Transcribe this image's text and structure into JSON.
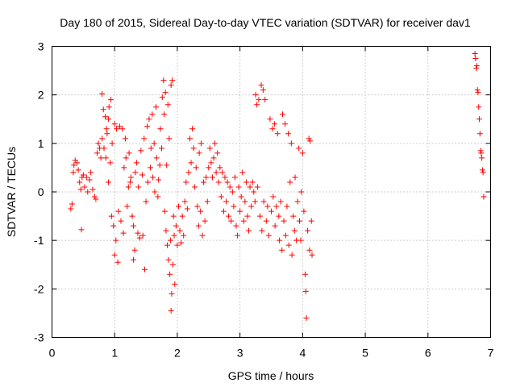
{
  "chart_data": {
    "type": "scatter",
    "title": "Day 180 of 2015, Sidereal Day-to-day VTEC variation (SDTVAR) for receiver dav1",
    "xlabel": "GPS time / hours",
    "ylabel": "SDTVAR / TECUs",
    "xlim": [
      0,
      7
    ],
    "ylim": [
      -3,
      3
    ],
    "xticks": [
      "0",
      "1",
      "2",
      "3",
      "4",
      "5",
      "6",
      "7"
    ],
    "yticks": [
      "3",
      "2",
      "1",
      "0",
      "-1",
      "-2",
      "-3"
    ],
    "grid": true,
    "marker": "+",
    "color": "#ff0000",
    "series": [
      {
        "name": "SDTVAR",
        "points": [
          [
            0.3,
            -0.35
          ],
          [
            0.32,
            -0.25
          ],
          [
            0.34,
            0.4
          ],
          [
            0.35,
            0.55
          ],
          [
            0.37,
            0.65
          ],
          [
            0.4,
            0.6
          ],
          [
            0.42,
            0.45
          ],
          [
            0.44,
            0.2
          ],
          [
            0.46,
            0.05
          ],
          [
            0.47,
            -0.78
          ],
          [
            0.48,
            0.3
          ],
          [
            0.5,
            0.35
          ],
          [
            0.52,
            0.1
          ],
          [
            0.55,
            0.3
          ],
          [
            0.57,
            0.0
          ],
          [
            0.6,
            0.25
          ],
          [
            0.62,
            0.4
          ],
          [
            0.65,
            0.05
          ],
          [
            0.68,
            -0.1
          ],
          [
            0.7,
            -0.15
          ],
          [
            0.72,
            0.8
          ],
          [
            0.74,
            1.0
          ],
          [
            0.76,
            0.9
          ],
          [
            0.78,
            0.7
          ],
          [
            0.8,
            2.02
          ],
          [
            0.8,
            1.1
          ],
          [
            0.82,
            1.7
          ],
          [
            0.83,
            0.9
          ],
          [
            0.85,
            1.55
          ],
          [
            0.86,
            0.7
          ],
          [
            0.87,
            1.3
          ],
          [
            0.88,
            1.2
          ],
          [
            0.9,
            0.2
          ],
          [
            0.9,
            1.5
          ],
          [
            0.91,
            1.75
          ],
          [
            0.93,
            0.6
          ],
          [
            0.94,
            1.9
          ],
          [
            0.95,
            -0.5
          ],
          [
            0.96,
            1.0
          ],
          [
            0.98,
            -0.7
          ],
          [
            1.0,
            1.4
          ],
          [
            1.0,
            -1.3
          ],
          [
            1.02,
            -1.0
          ],
          [
            1.03,
            1.3
          ],
          [
            1.05,
            -1.45
          ],
          [
            1.06,
            -0.4
          ],
          [
            1.08,
            1.35
          ],
          [
            1.1,
            -0.6
          ],
          [
            1.12,
            1.3
          ],
          [
            1.14,
            -0.85
          ],
          [
            1.15,
            0.5
          ],
          [
            1.17,
            1.1
          ],
          [
            1.18,
            0.7
          ],
          [
            1.2,
            -0.3
          ],
          [
            1.22,
            0.1
          ],
          [
            1.23,
            0.8
          ],
          [
            1.25,
            0.2
          ],
          [
            1.26,
            0.3
          ],
          [
            1.28,
            -0.5
          ],
          [
            1.3,
            -0.7
          ],
          [
            1.3,
            -1.4
          ],
          [
            1.32,
            -1.2
          ],
          [
            1.33,
            0.4
          ],
          [
            1.35,
            0.6
          ],
          [
            1.37,
            -0.85
          ],
          [
            1.38,
            0.1
          ],
          [
            1.4,
            -0.95
          ],
          [
            1.42,
            0.85
          ],
          [
            1.44,
            0.35
          ],
          [
            1.45,
            -0.9
          ],
          [
            1.47,
            1.1
          ],
          [
            1.48,
            -1.6
          ],
          [
            1.5,
            -0.2
          ],
          [
            1.52,
            1.35
          ],
          [
            1.53,
            0.2
          ],
          [
            1.55,
            1.5
          ],
          [
            1.57,
            0.5
          ],
          [
            1.58,
            0.9
          ],
          [
            1.6,
            1.6
          ],
          [
            1.61,
            0.3
          ],
          [
            1.63,
            1.0
          ],
          [
            1.64,
            0.0
          ],
          [
            1.66,
            1.75
          ],
          [
            1.67,
            0.7
          ],
          [
            1.69,
            -0.1
          ],
          [
            1.7,
            0.25
          ],
          [
            1.72,
            0.55
          ],
          [
            1.73,
            1.3
          ],
          [
            1.75,
            0.9
          ],
          [
            1.76,
            1.95
          ],
          [
            1.78,
            2.3
          ],
          [
            1.79,
            1.6
          ],
          [
            1.8,
            -0.4
          ],
          [
            1.81,
            2.05
          ],
          [
            1.82,
            -0.8
          ],
          [
            1.83,
            0.55
          ],
          [
            1.84,
            -1.1
          ],
          [
            1.85,
            1.8
          ],
          [
            1.86,
            -1.4
          ],
          [
            1.87,
            1.1
          ],
          [
            1.88,
            -1.7
          ],
          [
            1.89,
            -1.0
          ],
          [
            1.9,
            2.2
          ],
          [
            1.9,
            -2.45
          ],
          [
            1.91,
            -2.1
          ],
          [
            1.92,
            2.3
          ],
          [
            1.93,
            -1.5
          ],
          [
            1.94,
            -0.5
          ],
          [
            1.95,
            -0.9
          ],
          [
            1.96,
            -1.9
          ],
          [
            1.98,
            -0.7
          ],
          [
            2.0,
            -1.1
          ],
          [
            2.02,
            -0.3
          ],
          [
            2.04,
            -0.8
          ],
          [
            2.06,
            -1.05
          ],
          [
            2.08,
            -0.5
          ],
          [
            2.1,
            -0.9
          ],
          [
            2.12,
            -0.2
          ],
          [
            2.14,
            0.2
          ],
          [
            2.16,
            -0.35
          ],
          [
            2.18,
            0.4
          ],
          [
            2.2,
            1.1
          ],
          [
            2.22,
            0.6
          ],
          [
            2.24,
            1.3
          ],
          [
            2.26,
            0.9
          ],
          [
            2.28,
            0.1
          ],
          [
            2.3,
            0.5
          ],
          [
            2.32,
            -0.3
          ],
          [
            2.34,
            -0.7
          ],
          [
            2.35,
            0.8
          ],
          [
            2.37,
            -0.4
          ],
          [
            2.38,
            1.0
          ],
          [
            2.4,
            -0.9
          ],
          [
            2.42,
            0.2
          ],
          [
            2.44,
            -0.6
          ],
          [
            2.46,
            0.3
          ],
          [
            2.48,
            -0.2
          ],
          [
            2.5,
            0.5
          ],
          [
            2.52,
            0.9
          ],
          [
            2.54,
            0.6
          ],
          [
            2.56,
            0.3
          ],
          [
            2.58,
            0.7
          ],
          [
            2.6,
            1.0
          ],
          [
            2.62,
            0.4
          ],
          [
            2.64,
            0.8
          ],
          [
            2.66,
            0.2
          ],
          [
            2.68,
            0.5
          ],
          [
            2.7,
            -0.1
          ],
          [
            2.72,
            0.4
          ],
          [
            2.74,
            -0.4
          ],
          [
            2.76,
            0.3
          ],
          [
            2.78,
            -0.2
          ],
          [
            2.8,
            0.2
          ],
          [
            2.82,
            -0.5
          ],
          [
            2.84,
            0.1
          ],
          [
            2.86,
            -0.6
          ],
          [
            2.88,
            0.0
          ],
          [
            2.9,
            -0.3
          ],
          [
            2.92,
            0.3
          ],
          [
            2.94,
            -0.7
          ],
          [
            2.96,
            -0.9
          ],
          [
            2.98,
            0.1
          ],
          [
            3.0,
            -0.4
          ],
          [
            3.02,
            -0.1
          ],
          [
            3.04,
            0.4
          ],
          [
            3.06,
            -0.6
          ],
          [
            3.08,
            -0.2
          ],
          [
            3.1,
            0.2
          ],
          [
            3.12,
            -0.5
          ],
          [
            3.14,
            -0.8
          ],
          [
            3.16,
            0.1
          ],
          [
            3.18,
            -0.3
          ],
          [
            3.2,
            0.2
          ],
          [
            3.22,
            0.0
          ],
          [
            3.24,
            -0.2
          ],
          [
            3.25,
            2.0
          ],
          [
            3.27,
            1.8
          ],
          [
            3.28,
            0.1
          ],
          [
            3.3,
            1.9
          ],
          [
            3.32,
            -0.5
          ],
          [
            3.34,
            2.2
          ],
          [
            3.35,
            -0.8
          ],
          [
            3.37,
            2.1
          ],
          [
            3.38,
            -0.2
          ],
          [
            3.4,
            1.9
          ],
          [
            3.42,
            -0.6
          ],
          [
            3.44,
            -0.3
          ],
          [
            3.46,
            -0.9
          ],
          [
            3.48,
            1.5
          ],
          [
            3.5,
            -0.4
          ],
          [
            3.52,
            1.3
          ],
          [
            3.53,
            -0.1
          ],
          [
            3.55,
            1.4
          ],
          [
            3.56,
            -0.7
          ],
          [
            3.58,
            -0.3
          ],
          [
            3.6,
            1.2
          ],
          [
            3.62,
            -0.5
          ],
          [
            3.63,
            -1.0
          ],
          [
            3.65,
            -0.2
          ],
          [
            3.67,
            -1.2
          ],
          [
            3.68,
            1.6
          ],
          [
            3.7,
            -0.6
          ],
          [
            3.72,
            1.4
          ],
          [
            3.73,
            -0.9
          ],
          [
            3.75,
            -0.3
          ],
          [
            3.77,
            1.2
          ],
          [
            3.78,
            -1.1
          ],
          [
            3.8,
            0.2
          ],
          [
            3.82,
            1.0
          ],
          [
            3.83,
            -1.3
          ],
          [
            3.85,
            -0.5
          ],
          [
            3.87,
            -0.8
          ],
          [
            3.88,
            0.3
          ],
          [
            3.9,
            -1.0
          ],
          [
            3.92,
            -0.2
          ],
          [
            3.94,
            0.9
          ],
          [
            3.95,
            -0.6
          ],
          [
            3.97,
            -1.0
          ],
          [
            3.98,
            0.0
          ],
          [
            4.0,
            0.8
          ],
          [
            4.02,
            -0.4
          ],
          [
            4.04,
            -1.7
          ],
          [
            4.05,
            -2.05
          ],
          [
            4.06,
            -2.6
          ],
          [
            4.08,
            -0.8
          ],
          [
            4.1,
            1.1
          ],
          [
            4.11,
            -1.2
          ],
          [
            4.12,
            1.05
          ],
          [
            4.14,
            -0.6
          ],
          [
            4.15,
            -1.3
          ],
          [
            6.75,
            2.85
          ],
          [
            6.76,
            2.75
          ],
          [
            6.77,
            2.55
          ],
          [
            6.78,
            2.6
          ],
          [
            6.79,
            2.1
          ],
          [
            6.8,
            2.05
          ],
          [
            6.81,
            1.75
          ],
          [
            6.82,
            1.5
          ],
          [
            6.83,
            1.2
          ],
          [
            6.84,
            0.85
          ],
          [
            6.85,
            0.8
          ],
          [
            6.86,
            0.7
          ],
          [
            6.87,
            0.45
          ],
          [
            6.88,
            0.4
          ],
          [
            6.89,
            -0.1
          ]
        ]
      }
    ]
  }
}
